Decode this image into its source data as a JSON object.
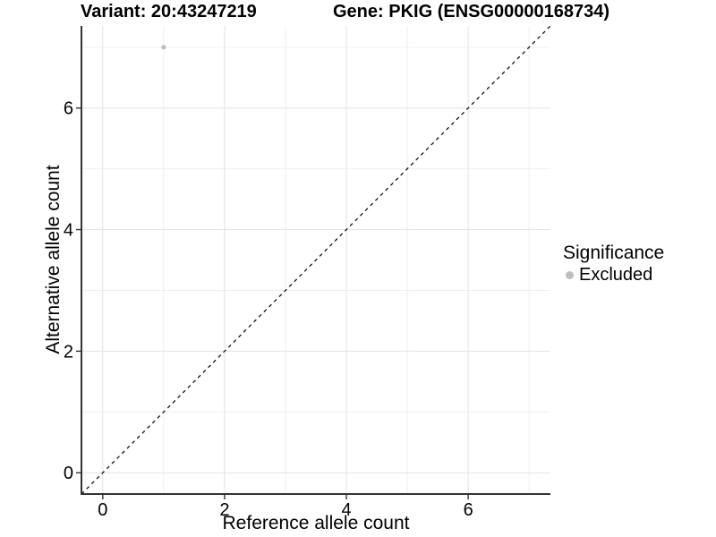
{
  "header": {
    "variant_title": "Variant: 20:43247219",
    "gene_title": "Gene: PKIG (ENSG00000168734)"
  },
  "chart_data": {
    "type": "scatter",
    "title_left": "Variant: 20:43247219",
    "title_right": "Gene: PKIG (ENSG00000168734)",
    "xlabel": "Reference allele count",
    "ylabel": "Alternative allele count",
    "xlim": [
      -0.35,
      7.35
    ],
    "ylim": [
      -0.35,
      7.35
    ],
    "x_ticks": [
      0,
      2,
      4,
      6
    ],
    "y_ticks": [
      0,
      2,
      4,
      6
    ],
    "x_minor_ticks": [
      1,
      3,
      5,
      7
    ],
    "y_minor_ticks": [
      1,
      3,
      5,
      7
    ],
    "grid": "on",
    "identity_line": {
      "equation": "y = x",
      "style": "dashed",
      "color": "#000000"
    },
    "series": [
      {
        "name": "Excluded",
        "color": "#bebebe",
        "points": [
          {
            "x": 1,
            "y": 7
          }
        ]
      }
    ],
    "legend": {
      "title": "Significance",
      "position": "right",
      "items": [
        {
          "label": "Excluded",
          "color": "#bebebe"
        }
      ]
    }
  },
  "colors": {
    "background": "#ffffff",
    "grid_major": "#e3e3e3",
    "grid_minor": "#efefef",
    "axis_line": "#333333",
    "tick_text": "#000000",
    "point": "#bebebe",
    "identity_line": "#000000"
  }
}
